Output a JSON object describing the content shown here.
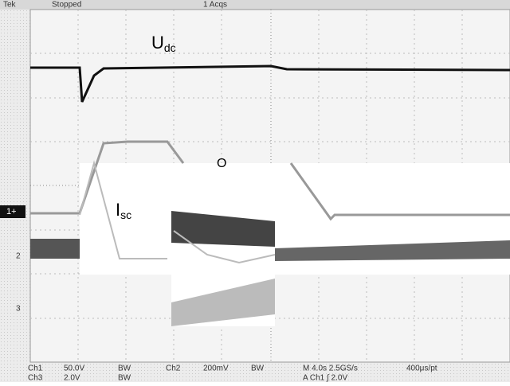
{
  "status_bar": {
    "brand": "Tek",
    "state": "Stopped",
    "acquisitions": "1 Acqs"
  },
  "annotations": {
    "udc_main": "U",
    "udc_sub": "dc",
    "isc_main": "I",
    "isc_sub": "sc",
    "circle_mark": "O"
  },
  "channel_markers": {
    "ch1": "1+",
    "ch2": "2",
    "ch3": "3"
  },
  "readout": {
    "row1": [
      "Ch1",
      "50.0V",
      "BW",
      "Ch2",
      "200mV",
      "BW",
      "M 4.0s 2.5GS/s",
      "400μs/pt"
    ],
    "row2": [
      "Ch3",
      "2.0V",
      "BW",
      "A Ch1 ∫ 2.0V"
    ]
  }
}
